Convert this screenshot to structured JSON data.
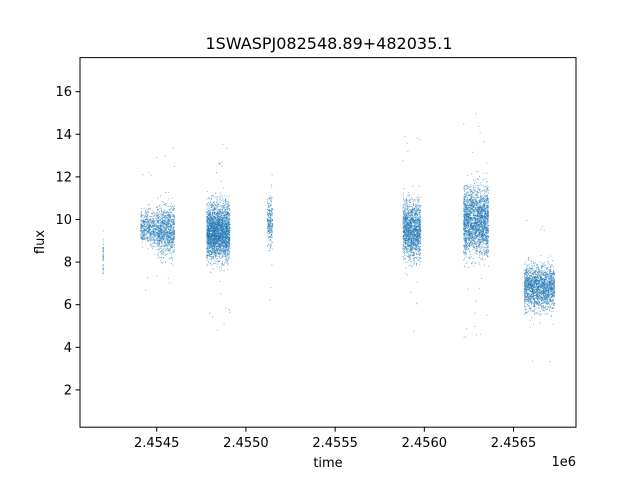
{
  "chart_data": {
    "type": "scatter",
    "title": "1SWASPJ082548.89+482035.1",
    "xlabel": "time",
    "ylabel": "flux",
    "x_offset_label": "1e6",
    "xlim": [
      2.45407,
      2.45685
    ],
    "ylim": [
      0.25,
      17.6
    ],
    "x_ticks": [
      2.4545,
      2.455,
      2.4555,
      2.456,
      2.4565
    ],
    "x_tick_labels": [
      "2.4545",
      "2.4550",
      "2.4555",
      "2.4560",
      "2.4565"
    ],
    "y_ticks": [
      2,
      4,
      6,
      8,
      10,
      12,
      14,
      16
    ],
    "y_tick_labels": [
      "2",
      "4",
      "6",
      "8",
      "10",
      "12",
      "14",
      "16"
    ],
    "grid": false,
    "series": [
      {
        "color": "#1f77b4",
        "clusters": [
          {
            "x": [
              2.4542,
              2.4542
            ],
            "y_range": [
              6.5,
              9.9
            ],
            "density": 40
          },
          {
            "x": [
              2.45441,
              2.4545
            ],
            "y_range": [
              8.2,
              11.0
            ],
            "density": 500
          },
          {
            "x": [
              2.4545,
              2.4546
            ],
            "y_range": [
              7.5,
              11.5
            ],
            "density": 900
          },
          {
            "x": [
              2.45478,
              2.45491
            ],
            "y_range": [
              7.2,
              11.6
            ],
            "density": 2600
          },
          {
            "x": [
              2.45512,
              2.45515
            ],
            "y_range": [
              8.0,
              11.8
            ],
            "density": 250
          },
          {
            "x": [
              2.45588,
              2.45598
            ],
            "y_range": [
              7.2,
              11.8
            ],
            "density": 1500
          },
          {
            "x": [
              2.45622,
              2.45636
            ],
            "y_range": [
              7.2,
              12.6
            ],
            "density": 2200
          },
          {
            "x": [
              2.45656,
              2.45673
            ],
            "y_range": [
              5.0,
              8.6
            ],
            "density": 1800
          }
        ]
      }
    ]
  }
}
